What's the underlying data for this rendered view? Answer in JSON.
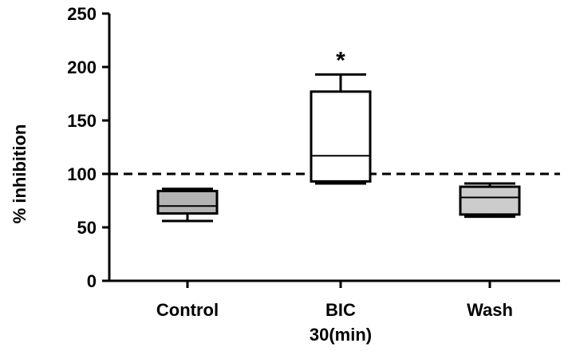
{
  "chart_data": {
    "type": "box",
    "title": "",
    "xlabel": "",
    "ylabel": "% inhibition",
    "ylim": [
      0,
      250
    ],
    "yticks": [
      "0",
      "50",
      "100",
      "150",
      "200",
      "250"
    ],
    "categories": [
      "Control",
      "BIC",
      "Wash"
    ],
    "category_sublabels": [
      "",
      "30(min)",
      ""
    ],
    "boxes": [
      {
        "category": "Control",
        "min": 56,
        "q1": 63,
        "median": 70,
        "q3": 84,
        "max": 86,
        "fill": "#b3b3b3"
      },
      {
        "category": "BIC",
        "min": 91,
        "q1": 93,
        "median": 117,
        "q3": 177,
        "max": 193,
        "fill": "#ffffff"
      },
      {
        "category": "Wash",
        "min": 60,
        "q1": 62,
        "median": 78,
        "q3": 88,
        "max": 91,
        "fill": "#cccccc"
      }
    ],
    "reference_line": {
      "y": 100,
      "style": "dashed"
    },
    "annotations": [
      {
        "category": "BIC",
        "text": "*"
      }
    ],
    "grid": false,
    "legend": "none"
  }
}
